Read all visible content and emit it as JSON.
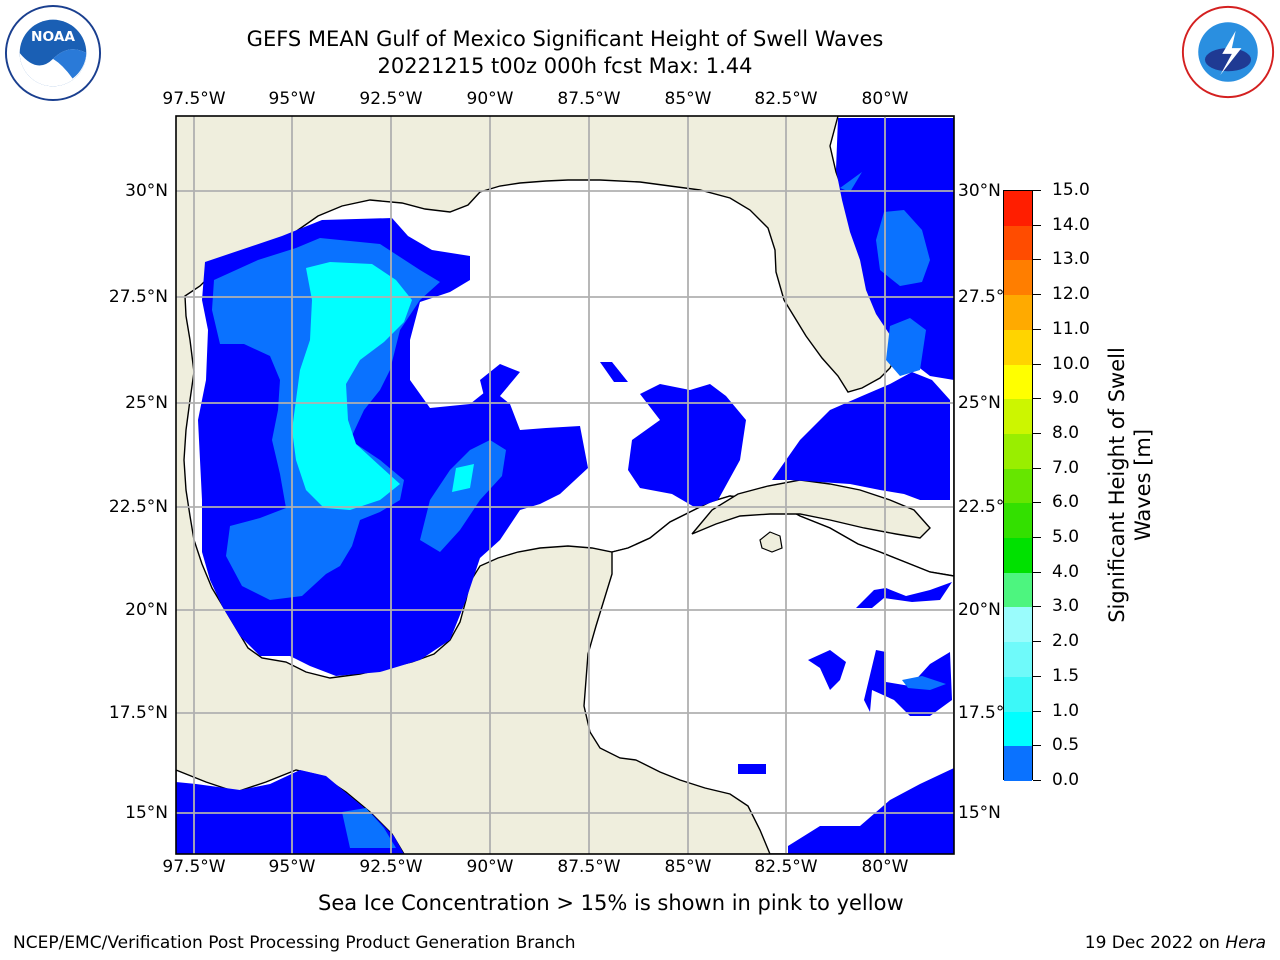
{
  "title": {
    "line1": "GEFS MEAN Gulf of Mexico Significant Height of Swell Waves",
    "line2": "20221215 t00z 000h fcst   Max: 1.44"
  },
  "map": {
    "longitudes": [
      "97.5°W",
      "95°W",
      "92.5°W",
      "90°W",
      "87.5°W",
      "85°W",
      "82.5°W",
      "80°W"
    ],
    "latitudes": [
      "30°N",
      "27.5°N",
      "25°N",
      "22.5°N",
      "20°N",
      "17.5°N",
      "15°N"
    ],
    "colors": {
      "land": "#efeedd",
      "water": "#ffffff",
      "grid": "#b0b0b0",
      "coast": "#000000"
    }
  },
  "colorbar": {
    "label_line1": "Significant Height of Swell",
    "label_line2": "Waves [m]",
    "ticks": [
      "0.0",
      "0.5",
      "1.0",
      "1.5",
      "2.0",
      "3.0",
      "4.0",
      "5.0",
      "6.0",
      "7.0",
      "8.0",
      "9.0",
      "10.0",
      "11.0",
      "12.0",
      "13.0",
      "14.0",
      "15.0"
    ],
    "colors": [
      "#0000ff",
      "#0a72ff",
      "#00ffff",
      "#3cf8f8",
      "#6ffafa",
      "#9afcfc",
      "#4df57f",
      "#00e100",
      "#33e000",
      "#66e600",
      "#99ee00",
      "#ccf600",
      "#ffff00",
      "#ffd400",
      "#ffaa00",
      "#ff7e00",
      "#ff4c00",
      "#ff1e00"
    ]
  },
  "note": "Sea Ice Concentration > 15% is shown in pink to yellow",
  "footer": {
    "left": "NCEP/EMC/Verification Post Processing Product Generation Branch",
    "right_prefix": "19 Dec 2022 on ",
    "right_host": "Hera"
  },
  "logos": {
    "noaa": "noaa-logo",
    "nws": "nws-logo"
  }
}
